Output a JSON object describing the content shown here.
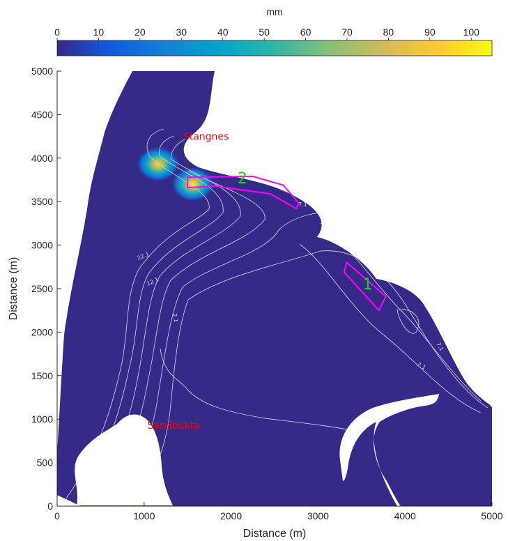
{
  "chart_data": {
    "type": "heatmap",
    "title": "",
    "xlabel": "Distance (m)",
    "ylabel": "Distance (m)",
    "xlim": [
      0,
      5000
    ],
    "ylim": [
      0,
      5000
    ],
    "x_ticks": [
      0,
      1000,
      2000,
      3000,
      4000,
      5000
    ],
    "y_ticks": [
      0,
      500,
      1000,
      1500,
      2000,
      2500,
      3000,
      3500,
      4000,
      4500,
      5000
    ],
    "colorbar": {
      "label": "mm",
      "range": [
        0,
        105
      ],
      "ticks": [
        0,
        10,
        20,
        30,
        40,
        50,
        60,
        70,
        80,
        90,
        100
      ],
      "colormap": [
        "#352a87",
        "#0f5cdd",
        "#1481d6",
        "#06a4ca",
        "#2eb7a4",
        "#87bf77",
        "#d1bb59",
        "#fec832",
        "#f9fb0e"
      ]
    },
    "background_value": 0,
    "hotspots": [
      {
        "x": 1160,
        "y": 3930,
        "value": 95
      },
      {
        "x": 1560,
        "y": 3700,
        "value": 100
      }
    ],
    "contour_labels": [
      "22.1",
      "12.1",
      "2.1",
      "2.1",
      "7.1",
      "7.1"
    ],
    "place_labels": [
      {
        "text": "Stangnes",
        "x": 1450,
        "y": 4210
      },
      {
        "text": "Sandbukta",
        "x": 1040,
        "y": 890
      }
    ],
    "zones": [
      {
        "label": "2",
        "polygon": [
          [
            1500,
            3780
          ],
          [
            2250,
            3790
          ],
          [
            2600,
            3690
          ],
          [
            2780,
            3480
          ],
          [
            2750,
            3420
          ],
          [
            2450,
            3590
          ],
          [
            1800,
            3680
          ],
          [
            1500,
            3660
          ]
        ],
        "label_x": 2130,
        "label_y": 3710
      },
      {
        "label": "1",
        "polygon": [
          [
            3330,
            2800
          ],
          [
            3780,
            2410
          ],
          [
            3700,
            2250
          ],
          [
            3300,
            2690
          ]
        ],
        "label_x": 3570,
        "label_y": 2490
      }
    ],
    "colors": {
      "background_field": "#352a87",
      "land": "#ffffff",
      "contour": "#c8c8dc",
      "zone_outline": "#ff00ff",
      "zone_label": "#00e000",
      "place_label": "#ff0000"
    }
  }
}
